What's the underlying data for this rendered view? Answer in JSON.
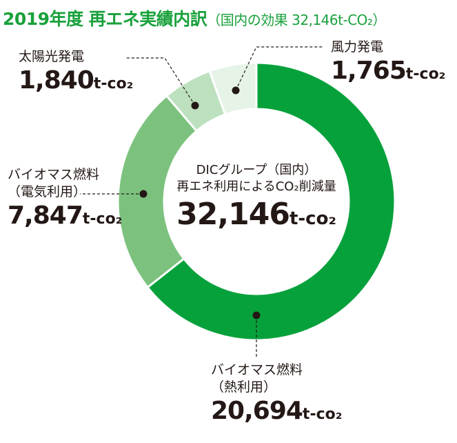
{
  "title": {
    "main": "2019年度 再エネ実績内訳",
    "sub": "（国内の効果 32,146t-CO₂）"
  },
  "center": {
    "line1": "DICグループ（国内）",
    "line2": "再エネ利用によるCO₂削減量",
    "value": "32,146",
    "unit": "t-co₂"
  },
  "colors": {
    "biomass_heat": "#07a13c",
    "biomass_electric": "#7cc27e",
    "solar": "#bde1bf",
    "wind": "#e6f3e7",
    "leader": "#231815",
    "title": "#19a13c"
  },
  "chart_data": {
    "type": "pie",
    "style": "donut",
    "unit": "t-co₂",
    "total": 32146,
    "slices": [
      {
        "name": "バイオマス燃料（熱利用）",
        "value": 20694,
        "display": "20,694",
        "color": "#07a13c"
      },
      {
        "name": "バイオマス燃料（電気利用）",
        "value": 7847,
        "display": "7,847",
        "color": "#7cc27e"
      },
      {
        "name": "太陽光発電",
        "value": 1840,
        "display": "1,840",
        "color": "#bde1bf"
      },
      {
        "name": "風力発電",
        "value": 1765,
        "display": "1,765",
        "color": "#e6f3e7"
      }
    ]
  },
  "labels": {
    "biomass_heat": {
      "line1": "バイオマス燃料",
      "line2": "（熱利用）"
    },
    "biomass_electric": {
      "line1": "バイオマス燃料",
      "line2": "（電気利用）"
    },
    "solar": {
      "line1": "太陽光発電"
    },
    "wind": {
      "line1": "風力発電"
    }
  }
}
